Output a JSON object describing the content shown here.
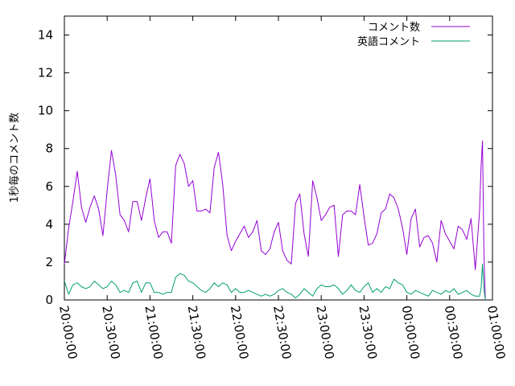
{
  "chart_data": {
    "type": "line",
    "title": "",
    "xlabel": "",
    "ylabel": "1秒毎のコメント数",
    "ylim": [
      0,
      15
    ],
    "yticks": [
      0,
      2,
      4,
      6,
      8,
      10,
      12,
      14
    ],
    "xlim": [
      "20:00:00",
      "01:00:00"
    ],
    "xticks": [
      "20:00:00",
      "20:30:00",
      "21:00:00",
      "21:30:00",
      "22:00:00",
      "22:30:00",
      "23:00:00",
      "23:30:00",
      "00:00:00",
      "00:30:00",
      "01:00:00"
    ],
    "grid": false,
    "legend_position": "top-right",
    "x": [
      "20:00:00",
      "20:03:00",
      "20:06:00",
      "20:09:00",
      "20:12:00",
      "20:15:00",
      "20:18:00",
      "20:21:00",
      "20:24:00",
      "20:27:00",
      "20:30:00",
      "20:33:00",
      "20:36:00",
      "20:39:00",
      "20:42:00",
      "20:45:00",
      "20:48:00",
      "20:51:00",
      "20:54:00",
      "20:57:00",
      "21:00:00",
      "21:03:00",
      "21:06:00",
      "21:09:00",
      "21:12:00",
      "21:15:00",
      "21:18:00",
      "21:21:00",
      "21:24:00",
      "21:27:00",
      "21:30:00",
      "21:33:00",
      "21:36:00",
      "21:39:00",
      "21:42:00",
      "21:45:00",
      "21:48:00",
      "21:51:00",
      "21:54:00",
      "21:57:00",
      "22:00:00",
      "22:03:00",
      "22:06:00",
      "22:09:00",
      "22:12:00",
      "22:15:00",
      "22:18:00",
      "22:21:00",
      "22:24:00",
      "22:27:00",
      "22:30:00",
      "22:33:00",
      "22:36:00",
      "22:39:00",
      "22:42:00",
      "22:45:00",
      "22:48:00",
      "22:51:00",
      "22:54:00",
      "22:57:00",
      "23:00:00",
      "23:03:00",
      "23:06:00",
      "23:09:00",
      "23:12:00",
      "23:15:00",
      "23:18:00",
      "23:21:00",
      "23:24:00",
      "23:27:00",
      "23:30:00",
      "23:33:00",
      "23:36:00",
      "23:39:00",
      "23:42:00",
      "23:45:00",
      "23:48:00",
      "23:51:00",
      "23:54:00",
      "23:57:00",
      "00:00:00",
      "00:03:00",
      "00:06:00",
      "00:09:00",
      "00:12:00",
      "00:15:00",
      "00:18:00",
      "00:21:00",
      "00:24:00",
      "00:27:00",
      "00:30:00",
      "00:33:00",
      "00:36:00",
      "00:39:00",
      "00:42:00",
      "00:45:00",
      "00:48:00",
      "00:51:00"
    ],
    "series": [
      {
        "name": "コメント数",
        "color": "#9400d3",
        "values": [
          1.9,
          3.8,
          5.2,
          6.8,
          4.9,
          4.1,
          4.9,
          5.5,
          4.8,
          3.4,
          5.8,
          7.9,
          6.6,
          4.5,
          4.2,
          3.6,
          5.2,
          5.2,
          4.2,
          5.4,
          6.4,
          4.2,
          3.3,
          3.6,
          3.6,
          3.0,
          7.1,
          7.7,
          7.2,
          6.0,
          6.3,
          4.7,
          4.7,
          4.8,
          4.6,
          7.0,
          7.8,
          6.1,
          3.4,
          2.6,
          3.1,
          3.5,
          3.9,
          3.3,
          3.6,
          4.2,
          2.6,
          2.4,
          2.7,
          3.6,
          4.1,
          2.6,
          2.1,
          1.9,
          5.1,
          5.6,
          3.5,
          2.3,
          6.3,
          5.4,
          4.2,
          4.5,
          4.9,
          5.0,
          2.3,
          4.5,
          4.7,
          4.7,
          4.5,
          6.1,
          4.4,
          2.9,
          3.0,
          3.5,
          4.6,
          4.8,
          5.6,
          5.4,
          4.8,
          3.8,
          2.4,
          4.3,
          4.8,
          2.8,
          3.3,
          3.4,
          3.0,
          2.0,
          4.2,
          3.5,
          3.1,
          2.7,
          3.9,
          3.7,
          3.2,
          4.3,
          1.6,
          4.7
        ]
      },
      {
        "name": "英語コメント",
        "color": "#009e73",
        "values": [
          1.0,
          0.3,
          0.8,
          0.9,
          0.7,
          0.6,
          0.7,
          1.0,
          0.8,
          0.6,
          0.7,
          1.0,
          0.8,
          0.4,
          0.5,
          0.4,
          0.9,
          1.0,
          0.4,
          0.9,
          0.9,
          0.4,
          0.4,
          0.3,
          0.4,
          0.4,
          1.2,
          1.4,
          1.3,
          1.0,
          0.9,
          0.7,
          0.5,
          0.4,
          0.6,
          0.9,
          0.7,
          0.9,
          0.8,
          0.4,
          0.6,
          0.4,
          0.4,
          0.5,
          0.4,
          0.3,
          0.2,
          0.3,
          0.2,
          0.3,
          0.5,
          0.6,
          0.4,
          0.3,
          0.1,
          0.3,
          0.6,
          0.4,
          0.2,
          0.6,
          0.8,
          0.7,
          0.7,
          0.8,
          0.6,
          0.3,
          0.5,
          0.8,
          0.5,
          0.4,
          0.7,
          0.9,
          0.4,
          0.6,
          0.4,
          0.7,
          0.6,
          1.1,
          0.9,
          0.8,
          0.4,
          0.3,
          0.5,
          0.4,
          0.3,
          0.2,
          0.5,
          0.4,
          0.3,
          0.5,
          0.4,
          0.6,
          0.3,
          0.4,
          0.5,
          0.3,
          0.2,
          0.2
        ]
      }
    ],
    "spikes": [
      {
        "series": "コメント数",
        "points": [
          [
            "00:52:00",
            7.0
          ],
          [
            "00:53:00",
            8.4
          ],
          [
            "00:54:00",
            2.5
          ],
          [
            "00:55:00",
            0.0
          ]
        ]
      },
      {
        "series": "英語コメント",
        "points": [
          [
            "00:52:00",
            0.6
          ],
          [
            "00:53:00",
            1.9
          ],
          [
            "00:54:00",
            0.6
          ],
          [
            "00:55:00",
            0.0
          ]
        ]
      }
    ]
  }
}
